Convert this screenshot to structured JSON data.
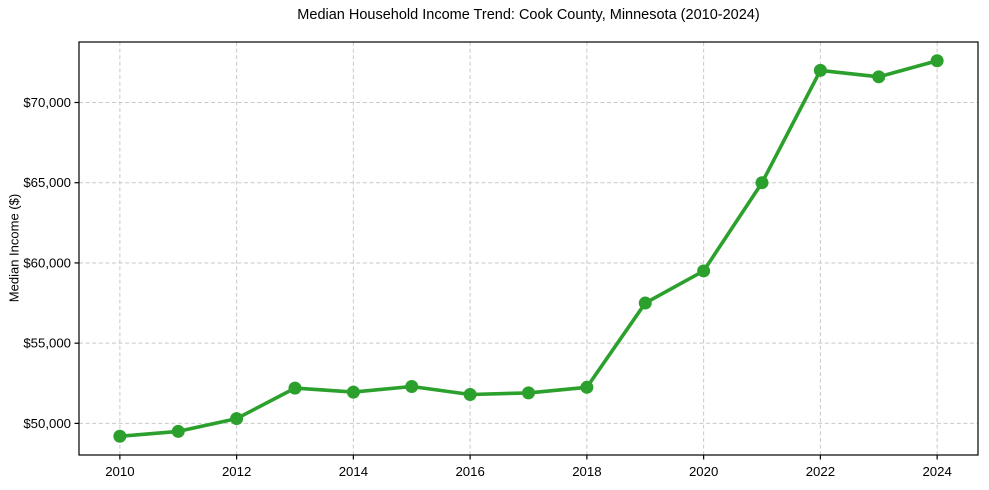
{
  "chart_data": {
    "type": "line",
    "title": "Median Household Income Trend: Cook County, Minnesota (2010-2024)",
    "xlabel": "",
    "ylabel": "Median Income ($)",
    "x": [
      2010,
      2011,
      2012,
      2013,
      2014,
      2015,
      2016,
      2017,
      2018,
      2019,
      2020,
      2021,
      2022,
      2023,
      2024
    ],
    "series": [
      {
        "name": "Median Household Income",
        "values": [
          49200,
          49500,
          50300,
          52200,
          51950,
          52300,
          51800,
          51900,
          52250,
          57500,
          59500,
          65000,
          72000,
          71600,
          72600
        ]
      }
    ],
    "x_ticks": [
      2010,
      2012,
      2014,
      2016,
      2018,
      2020,
      2022,
      2024
    ],
    "x_tick_labels": [
      "2010",
      "2012",
      "2014",
      "2016",
      "2018",
      "2020",
      "2022",
      "2024"
    ],
    "y_ticks": [
      50000,
      55000,
      60000,
      65000,
      70000
    ],
    "y_tick_labels": [
      "$50,000",
      "$55,000",
      "$60,000",
      "$65,000",
      "$70,000"
    ],
    "xlim": [
      2009.3,
      2024.7
    ],
    "ylim": [
      48030,
      73770
    ],
    "grid": true,
    "legend_position": "none",
    "colors": {
      "line": "#2ca02c",
      "marker": "#2ca02c",
      "grid": "#c9c9c9",
      "axis": "#000000",
      "background": "#ffffff"
    }
  }
}
